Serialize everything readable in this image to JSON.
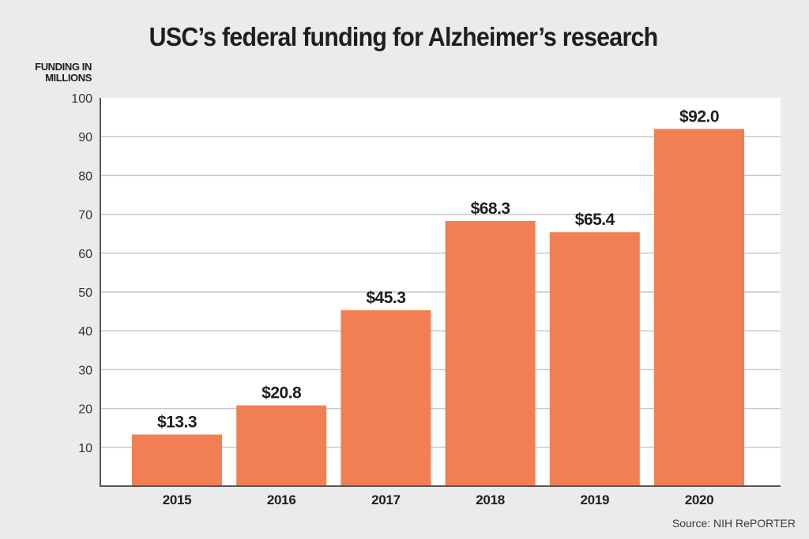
{
  "chart_data": {
    "type": "bar",
    "title": "USC’s federal funding for Alzheimer’s research",
    "ylabel_lines": [
      "FUNDING IN",
      "MILLIONS"
    ],
    "xlabel": "",
    "categories": [
      "2015",
      "2016",
      "2017",
      "2018",
      "2019",
      "2020"
    ],
    "values": [
      13.3,
      20.8,
      45.3,
      68.3,
      65.4,
      92.0
    ],
    "data_labels": [
      "$13.3",
      "$20.8",
      "$45.3",
      "$68.3",
      "$65.4",
      "$92.0"
    ],
    "ylim": [
      0,
      100
    ],
    "yticks": [
      10,
      20,
      30,
      40,
      50,
      60,
      70,
      80,
      90,
      100
    ],
    "grid": true,
    "legend": "none",
    "source": "Source: NIH RePORTER",
    "colors": {
      "bar": "#f27f53",
      "background": "#ebebeb",
      "plot_background": "#ffffff",
      "grid": "#c8c8c8",
      "axis": "#555555",
      "text": "#1e1e1e"
    }
  }
}
